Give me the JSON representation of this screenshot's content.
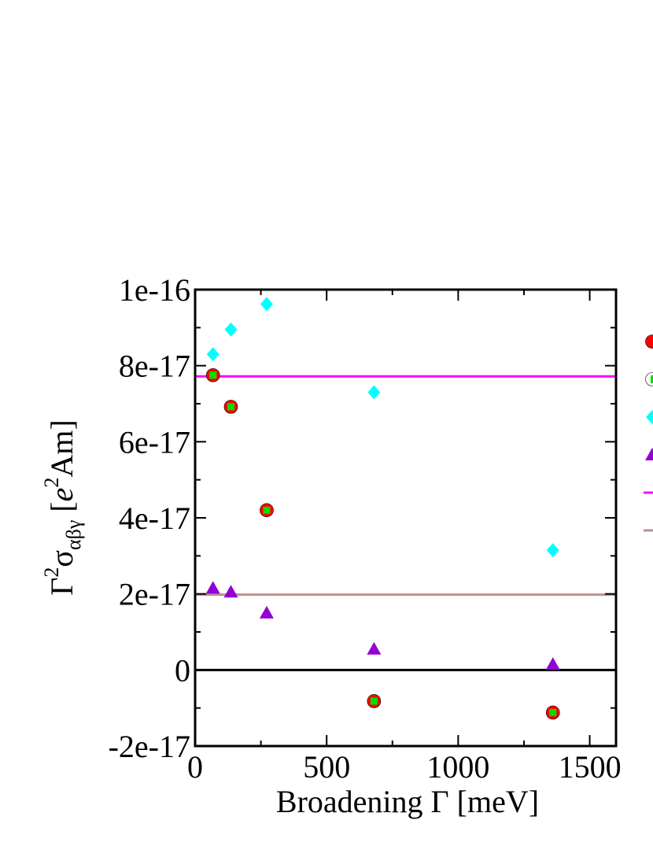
{
  "chart_data": {
    "type": "scatter",
    "xlabel": "Broadening Γ [meV]",
    "ylabel": {
      "prefix": "Γ",
      "prefix_sup": "2",
      "symbol": "σ",
      "symbol_sub": "αβγ",
      "unit_open": " [",
      "unit_var": "e",
      "unit_sup": "2",
      "unit_close": "Am]"
    },
    "xlim": [
      0,
      1600
    ],
    "ylim": [
      -2e-17,
      1e-16
    ],
    "xticks": [
      {
        "value": 0,
        "label": "0"
      },
      {
        "value": 500,
        "label": "500"
      },
      {
        "value": 1000,
        "label": "1000"
      },
      {
        "value": 1500,
        "label": "1500"
      }
    ],
    "yticks": [
      {
        "value": -2e-17,
        "label": "-2e-17"
      },
      {
        "value": 0,
        "label": "0"
      },
      {
        "value": 2e-17,
        "label": "2e-17"
      },
      {
        "value": 4e-17,
        "label": "4e-17"
      },
      {
        "value": 6e-17,
        "label": "6e-17"
      },
      {
        "value": 8e-17,
        "label": "8e-17"
      },
      {
        "value": 1e-16,
        "label": "1e-16"
      }
    ],
    "series": [
      {
        "marker": "circle",
        "color": "#ff0000",
        "x": [
          68,
          136,
          272,
          680,
          1360
        ],
        "y": [
          7.75e-17,
          6.92e-17,
          4.2e-17,
          -8.2e-18,
          -1.12e-17
        ]
      },
      {
        "marker": "square",
        "color": "#00dd00",
        "x": [
          68,
          136,
          272,
          680,
          1360
        ],
        "y": [
          7.75e-17,
          6.92e-17,
          4.2e-17,
          -8.2e-18,
          -1.12e-17
        ]
      },
      {
        "marker": "diamond",
        "color": "#00ffff",
        "x": [
          68,
          136,
          272,
          680,
          1360
        ],
        "y": [
          8.3e-17,
          8.95e-17,
          9.62e-17,
          7.3e-17,
          3.15e-17
        ]
      },
      {
        "marker": "triangle",
        "color": "#9400d3",
        "x": [
          68,
          136,
          272,
          680,
          1360
        ],
        "y": [
          2.15e-17,
          2.05e-17,
          1.5e-17,
          5.5e-18,
          1.5e-18
        ]
      }
    ],
    "hlines": [
      {
        "y": 7.72e-17,
        "color": "#ff00ff"
      },
      {
        "y": 1.98e-17,
        "color": "#bc8f8f"
      },
      {
        "y": 0,
        "color": "#000000"
      }
    ],
    "legend": {
      "placement": "right, clipped by image edge",
      "entries": [
        {
          "marker": "circle",
          "color": "#ff0000"
        },
        {
          "marker": "square",
          "color": "#00dd00"
        },
        {
          "marker": "diamond",
          "color": "#00ffff"
        },
        {
          "marker": "triangle",
          "color": "#9400d3"
        },
        {
          "marker": "line",
          "color": "#ff00ff"
        },
        {
          "marker": "line",
          "color": "#bc8f8f"
        }
      ]
    },
    "grid": false
  }
}
